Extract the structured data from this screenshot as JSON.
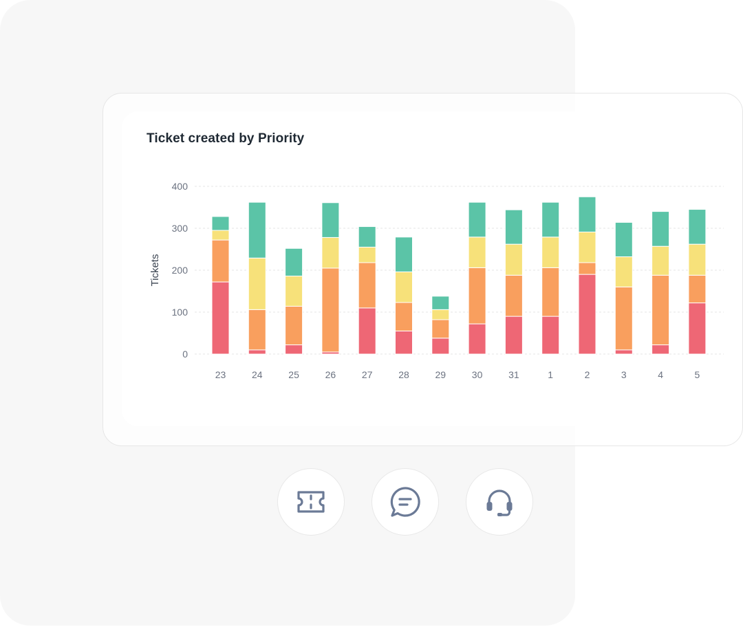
{
  "chart_data": {
    "type": "bar",
    "stacked": true,
    "title": "Ticket created by Priority",
    "ylabel": "Tickets",
    "xlabel": "",
    "ylim": [
      0,
      400
    ],
    "yticks": [
      "0",
      "100",
      "200",
      "300",
      "400"
    ],
    "grid": true,
    "categories": [
      "23",
      "24",
      "25",
      "26",
      "27",
      "28",
      "29",
      "30",
      "31",
      "1",
      "2",
      "3",
      "4",
      "5"
    ],
    "series": [
      {
        "color": "#ee6775",
        "values": [
          172,
          10,
          22,
          5,
          110,
          55,
          38,
          72,
          90,
          90,
          190,
          10,
          22,
          122
        ]
      },
      {
        "color": "#f99f5e",
        "values": [
          100,
          96,
          92,
          200,
          108,
          68,
          44,
          134,
          98,
          116,
          28,
          150,
          166,
          66
        ]
      },
      {
        "color": "#f7e17a",
        "values": [
          23,
          123,
          72,
          73,
          37,
          73,
          24,
          73,
          74,
          73,
          73,
          72,
          69,
          74
        ]
      },
      {
        "color": "#5bc4a7",
        "values": [
          33,
          133,
          66,
          83,
          49,
          83,
          32,
          83,
          82,
          83,
          84,
          82,
          83,
          83
        ]
      }
    ]
  },
  "icons": {
    "ticket": "ticket-icon",
    "chat": "chat-bubble-icon",
    "support": "headset-icon",
    "color": "#6b7a96"
  }
}
